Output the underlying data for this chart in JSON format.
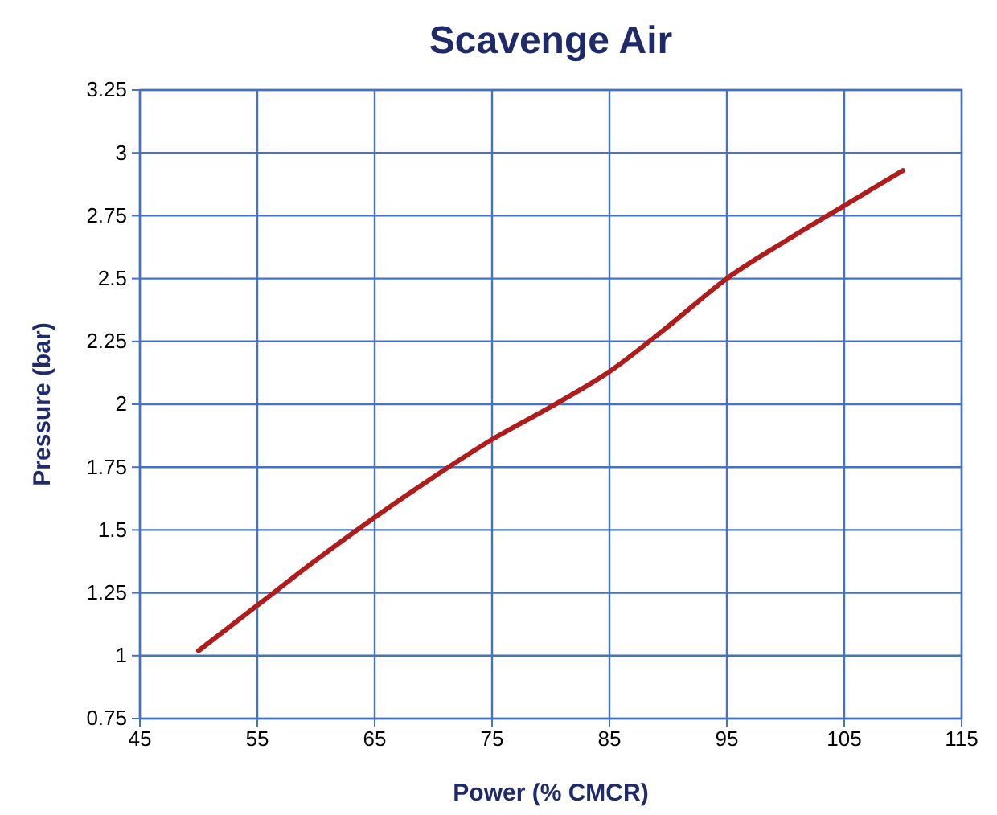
{
  "chart_data": {
    "type": "line",
    "title": "Scavenge Air",
    "xlabel": "Power (% CMCR)",
    "ylabel": "Pressure (bar)",
    "x": [
      50,
      55,
      60,
      65,
      70,
      75,
      80,
      85,
      90,
      95,
      100,
      105,
      110
    ],
    "series": [
      {
        "color": "#b01c1c",
        "values": [
          1.02,
          1.2,
          1.38,
          1.55,
          1.71,
          1.86,
          1.99,
          2.13,
          2.31,
          2.5,
          2.65,
          2.79,
          2.93
        ]
      }
    ],
    "xlim": [
      45,
      115
    ],
    "xticks": [
      45,
      55,
      65,
      75,
      85,
      95,
      105,
      115
    ],
    "ylim": [
      0.75,
      3.25
    ],
    "yticks": [
      0.75,
      1,
      1.25,
      1.5,
      1.75,
      2,
      2.25,
      2.5,
      2.75,
      3,
      3.25
    ],
    "grid": true,
    "marker": "none",
    "line_style": "solid"
  }
}
